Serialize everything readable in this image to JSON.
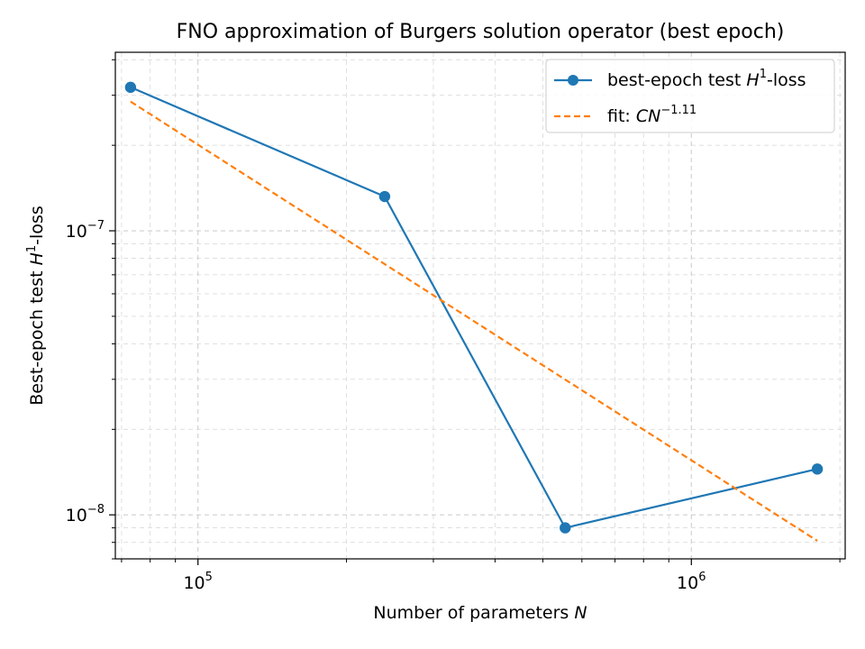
{
  "chart_data": {
    "type": "line",
    "title": "FNO approximation of Burgers solution operator (best epoch)",
    "xlabel": {
      "text": "Number of parameters ",
      "var": "N"
    },
    "ylabel": {
      "pre": "Best-epoch test ",
      "var": "H",
      "sup": "1",
      "post": "-loss"
    },
    "xscale": "log",
    "yscale": "log",
    "xlim": [
      68000,
      2050000
    ],
    "ylim": [
      7e-09,
      4.25e-07
    ],
    "x_major_ticks": [
      {
        "value": 100000,
        "label": {
          "base": "10",
          "exp": "5"
        }
      },
      {
        "value": 1000000,
        "label": {
          "base": "10",
          "exp": "6"
        }
      }
    ],
    "y_major_ticks": [
      {
        "value": 1e-08,
        "label": {
          "base": "10",
          "exp": "−8"
        }
      },
      {
        "value": 1e-07,
        "label": {
          "base": "10",
          "exp": "−7"
        }
      }
    ],
    "grid": true,
    "legend_position": "upper right",
    "series": [
      {
        "name": {
          "pre": "best-epoch test ",
          "var": "H",
          "sup": "1",
          "post": "-loss"
        },
        "style": "solid",
        "marker": "circle",
        "color": "#1f77b4",
        "x": [
          73000,
          239000,
          555000,
          1800000
        ],
        "y": [
          3.2e-07,
          1.32e-07,
          9e-09,
          1.45e-08
        ]
      },
      {
        "name": {
          "pre": "fit: ",
          "var": "CN",
          "sup": "−1.11",
          "post": ""
        },
        "style": "dashed",
        "marker": "none",
        "color": "#ff7f0e",
        "x": [
          73000,
          1800000
        ],
        "y": [
          2.85e-07,
          8.1e-09
        ]
      }
    ]
  }
}
